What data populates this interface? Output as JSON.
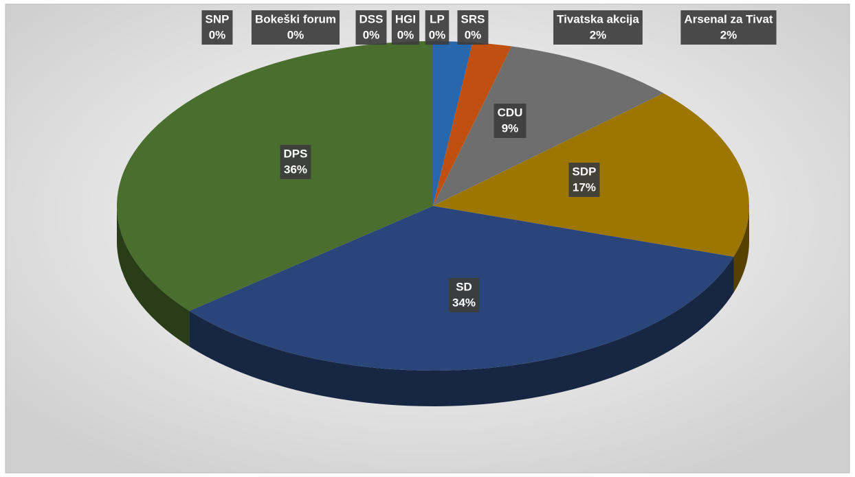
{
  "chart_data": {
    "type": "pie",
    "categories": [
      "SNP",
      "Bokeški forum",
      "DSS",
      "HGI",
      "LP",
      "SRS",
      "Tivatska akcija",
      "Arsenal za Tivat",
      "CDU",
      "SDP",
      "SD",
      "DPS"
    ],
    "values": [
      0,
      0,
      0,
      0,
      0,
      0,
      2,
      2,
      9,
      17,
      34,
      36
    ],
    "value_labels": [
      "0%",
      "0%",
      "0%",
      "0%",
      "0%",
      "0%",
      "2%",
      "2%",
      "9%",
      "17%",
      "34%",
      "36%"
    ],
    "colors": [
      "#5b9bd5",
      "#ed7d31",
      "#a5a5a5",
      "#ffc000",
      "#4472c4",
      "#70ad47",
      "#2867ab",
      "#c0500f",
      "#6e6e6e",
      "#9c7600",
      "#2a4579",
      "#4a6e2d"
    ]
  }
}
